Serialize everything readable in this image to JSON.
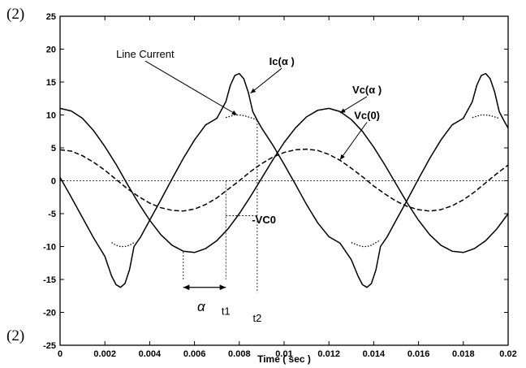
{
  "corner_labels": {
    "top": "(2)",
    "bottom": "(2)"
  },
  "chart_data": {
    "type": "line",
    "title": "",
    "xlabel": "Time ( sec )",
    "ylabel": "",
    "xlim": [
      0,
      0.02
    ],
    "ylim": [
      -25,
      25
    ],
    "x_ticks": [
      0,
      0.002,
      0.004,
      0.006,
      0.008,
      0.01,
      0.012,
      0.014,
      0.016,
      0.018,
      0.02
    ],
    "x_tick_labels": [
      "0",
      "0.002",
      "0.004",
      "0.006",
      "0.008",
      "0.01",
      "0.012",
      "0.014",
      "0.016",
      "0.018",
      "0.02"
    ],
    "y_ticks": [
      25,
      20,
      15,
      10,
      5,
      0,
      -5,
      -10,
      -15,
      -20,
      -25
    ],
    "y_tick_labels": [
      "25",
      "20",
      "15",
      "10",
      "5",
      "0",
      "-5",
      "-10",
      "-15",
      "-20",
      "-25"
    ],
    "grid": false,
    "zero_line": true,
    "series": [
      {
        "name": "Ic(α )",
        "style": "solid",
        "x": [
          0,
          0.0005,
          0.001,
          0.0015,
          0.002,
          0.0023,
          0.0025,
          0.0027,
          0.0029,
          0.0031,
          0.0033,
          0.0036,
          0.004,
          0.0045,
          0.005,
          0.0055,
          0.006,
          0.0065,
          0.007,
          0.0074,
          0.0076,
          0.0078,
          0.008,
          0.0082,
          0.0084,
          0.0086,
          0.0088,
          0.009,
          0.0095,
          0.01,
          0.0105,
          0.011,
          0.0115,
          0.012,
          0.0125,
          0.013,
          0.0133,
          0.0135,
          0.0137,
          0.0139,
          0.0141,
          0.0143,
          0.0146,
          0.015,
          0.0155,
          0.016,
          0.0165,
          0.017,
          0.0175,
          0.018,
          0.0184,
          0.0186,
          0.0188,
          0.019,
          0.0192,
          0.0194,
          0.0196,
          0.0198,
          0.02
        ],
        "y": [
          0.5,
          -2.5,
          -5.6,
          -8.7,
          -11.5,
          -14.5,
          -15.8,
          -16.2,
          -15.6,
          -13.5,
          -10,
          -8.5,
          -6,
          -2.9,
          0.3,
          3.4,
          6.2,
          8.5,
          9.5,
          12,
          14.5,
          16,
          16.3,
          15.5,
          13.5,
          10.5,
          9.2,
          8,
          5.4,
          2.5,
          -0.5,
          -3.6,
          -6.4,
          -8.5,
          -9.5,
          -12,
          -14.5,
          -15.8,
          -16.2,
          -15.6,
          -13.5,
          -10,
          -8.5,
          -6,
          -2.9,
          0.3,
          3.4,
          6.2,
          8.5,
          9.5,
          12,
          14.5,
          16,
          16.3,
          15.5,
          13.5,
          10.5,
          9.2,
          8
        ]
      },
      {
        "name": "Line Current",
        "style": "dotted",
        "x": [
          0.0023,
          0.0025,
          0.0027,
          0.0029,
          0.0031,
          0.0033,
          0.0074,
          0.0076,
          0.0078,
          0.008,
          0.0082,
          0.0084,
          0.0086,
          0.0088,
          0.013,
          0.0133,
          0.0135,
          0.0137,
          0.0139,
          0.0141,
          0.0143,
          0.0184,
          0.0186,
          0.0188,
          0.019,
          0.0192,
          0.0194,
          0.0196
        ],
        "y": [
          -9.4,
          -9.8,
          -10,
          -10,
          -9.8,
          -9.4,
          9.6,
          9.8,
          10,
          10,
          9.9,
          9.7,
          9.5,
          9.2,
          -9.4,
          -9.8,
          -10,
          -10,
          -9.8,
          -9.4,
          -9,
          9.6,
          9.8,
          10,
          10,
          9.9,
          9.7,
          9.5
        ]
      },
      {
        "name": "Vc(α )",
        "style": "solid",
        "x": [
          0,
          0.0005,
          0.001,
          0.0015,
          0.002,
          0.0025,
          0.003,
          0.0035,
          0.004,
          0.0045,
          0.005,
          0.0055,
          0.006,
          0.0065,
          0.007,
          0.0075,
          0.008,
          0.0085,
          0.009,
          0.0095,
          0.01,
          0.0105,
          0.011,
          0.0115,
          0.012,
          0.0125,
          0.013,
          0.0135,
          0.014,
          0.0145,
          0.015,
          0.0155,
          0.016,
          0.0165,
          0.017,
          0.0175,
          0.018,
          0.0185,
          0.019,
          0.0195,
          0.02
        ],
        "y": [
          11,
          10.6,
          9.5,
          7.6,
          5.2,
          2.5,
          -0.5,
          -3.4,
          -6,
          -8.2,
          -9.8,
          -10.7,
          -10.9,
          -10.3,
          -9.1,
          -7.3,
          -5,
          -2.4,
          0.4,
          3.2,
          5.8,
          8,
          9.7,
          10.7,
          11,
          10.5,
          9.3,
          7.5,
          5.1,
          2.4,
          -0.5,
          -3.4,
          -6,
          -8.2,
          -9.8,
          -10.7,
          -10.9,
          -10.3,
          -9.1,
          -7.3,
          -5
        ]
      },
      {
        "name": "Vc(0)",
        "style": "dashed",
        "x": [
          0,
          0.0005,
          0.001,
          0.0015,
          0.002,
          0.0025,
          0.003,
          0.0035,
          0.004,
          0.0045,
          0.005,
          0.0055,
          0.006,
          0.0065,
          0.007,
          0.0075,
          0.008,
          0.0085,
          0.009,
          0.0095,
          0.01,
          0.0105,
          0.011,
          0.0115,
          0.012,
          0.0125,
          0.013,
          0.0135,
          0.014,
          0.0145,
          0.015,
          0.0155,
          0.016,
          0.0165,
          0.017,
          0.0175,
          0.018,
          0.0185,
          0.019,
          0.0195,
          0.02
        ],
        "y": [
          4.7,
          4.5,
          3.8,
          2.8,
          1.6,
          0.2,
          -1.2,
          -2.4,
          -3.4,
          -4.1,
          -4.5,
          -4.6,
          -4.3,
          -3.6,
          -2.6,
          -1.3,
          0,
          1.4,
          2.6,
          3.6,
          4.3,
          4.7,
          4.8,
          4.6,
          4,
          3.1,
          1.9,
          0.6,
          -0.8,
          -2,
          -3.1,
          -3.9,
          -4.4,
          -4.6,
          -4.4,
          -3.8,
          -2.9,
          -1.7,
          -0.3,
          1.1,
          2.4
        ]
      }
    ],
    "reference_lines": [
      {
        "kind": "vertical",
        "x": 0.0055,
        "y_from": -10.8,
        "y_to": -15
      },
      {
        "kind": "vertical",
        "x": 0.0074,
        "y_from": 0,
        "y_to": -15
      },
      {
        "kind": "vertical",
        "x": 0.0088,
        "y_from": 9.2,
        "y_to": -17
      },
      {
        "kind": "horizontal",
        "y": -5.3,
        "x_from": 0.0074,
        "x_to": 0.0088
      }
    ],
    "annotations": [
      {
        "name": "annot-line-current",
        "text": "Line Current",
        "bold": false,
        "x": 0.0038,
        "y": 18.7,
        "arrow_to": {
          "x": 0.0079,
          "y": 10
        }
      },
      {
        "name": "annot-ic-alpha",
        "text": "Ic(α )",
        "bold": true,
        "x": 0.0099,
        "y": 17.6,
        "arrow_to": {
          "x": 0.0085,
          "y": 13.3
        }
      },
      {
        "name": "annot-vc-alpha",
        "text": "Vc(α )",
        "bold": true,
        "x": 0.0137,
        "y": 13.3,
        "arrow_to": {
          "x": 0.0125,
          "y": 10.3
        }
      },
      {
        "name": "annot-vc0",
        "text": "Vc(0)",
        "bold": true,
        "x": 0.0137,
        "y": 9.4,
        "arrow_to": {
          "x": 0.0125,
          "y": 3.2
        }
      },
      {
        "name": "annot-minus-vc0",
        "text": "-VC0",
        "bold": true,
        "x": 0.0091,
        "y": -6.5
      },
      {
        "name": "annot-alpha",
        "text": "α",
        "bold": false,
        "x": 0.0063,
        "y": -19.8,
        "double_arrow": {
          "x1": 0.0055,
          "x2": 0.0074,
          "y": -16.2
        }
      },
      {
        "name": "annot-t1",
        "text": "t1",
        "bold": false,
        "x": 0.0074,
        "y": -20.4
      },
      {
        "name": "annot-t2",
        "text": "t2",
        "bold": false,
        "x": 0.0088,
        "y": -21.4
      }
    ]
  }
}
